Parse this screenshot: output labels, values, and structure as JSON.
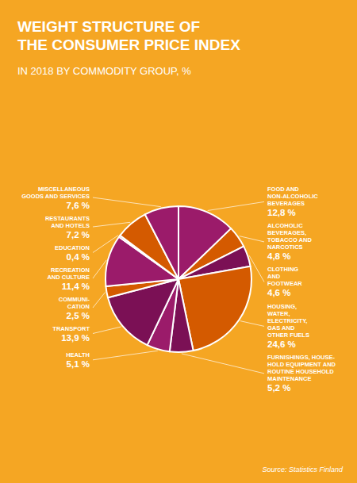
{
  "chart_data": {
    "type": "pie",
    "title": "WEIGHT STRUCTURE OF\nTHE CONSUMER PRICE INDEX",
    "subtitle": "IN 2018 BY COMMODITY GROUP, %",
    "annotations": [
      "Source: Statistics Finland"
    ],
    "categories": [
      "FOOD AND\nNON-ALCOHOLIC\nBEVERAGES",
      "ALCOHOLIC\nBEVERAGES,\nTOBACCO AND\nNARCOTICS",
      "CLOTHING\nAND\nFOOTWEAR",
      "HOUSING,\nWATER,\nELECTRICITY,\nGAS AND\nOTHER FUELS",
      "FURNISHINGS, HOUSE-\nHOLD EQUIPMENT AND\nROUTINE HOUSEHOLD\nMAINTENANCE",
      "HEALTH",
      "TRANSPORT",
      "COMMUNI-\nCATION",
      "RECREATION\nAND CULTURE",
      "EDUCATION",
      "RESTAURANTS\nAND HOTELS",
      "MISCELLANEOUS\nGOODS AND SERVICES"
    ],
    "values": [
      12.8,
      4.8,
      4.6,
      24.6,
      5.2,
      5.1,
      13.9,
      2.5,
      11.4,
      0.4,
      7.2,
      7.6
    ],
    "value_labels": [
      "12,8 %",
      "4,8 %",
      "4,6 %",
      "24,6 %",
      "5,2 %",
      "5,1 %",
      "13,9 %",
      "2,5 %",
      "11,4 %",
      "0,4 %",
      "7,2 %",
      "7,6 %"
    ],
    "colors": [
      "#9B1B6A",
      "#D45A00",
      "#7B1055",
      "#D45A00",
      "#7B1055",
      "#9B1B6A",
      "#7B1055",
      "#D45A00",
      "#9B1B6A",
      "#7B1055",
      "#D45A00",
      "#9B1B6A"
    ],
    "data_labels": true
  }
}
